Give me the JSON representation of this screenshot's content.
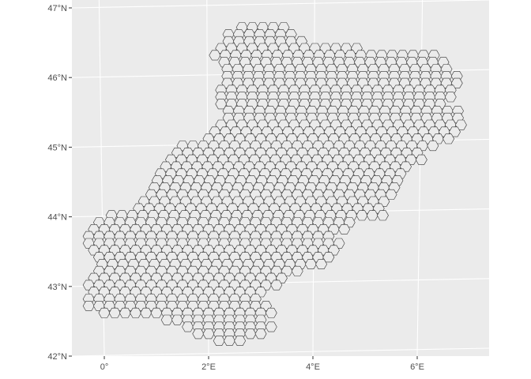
{
  "map": {
    "type": "hexagonal-grid-map",
    "panel_background": "#ebebeb",
    "grid_color": "#ffffff",
    "hex_outline_color": "#333333",
    "hex_fill": "#ebebeb",
    "lon_range": [
      -0.7,
      7.3
    ],
    "lat_range": [
      42,
      47
    ],
    "graticule": true
  },
  "axes": {
    "y_ticks": [
      {
        "value": 47,
        "label": "47°N"
      },
      {
        "value": 46,
        "label": "46°N"
      },
      {
        "value": 45,
        "label": "45°N"
      },
      {
        "value": 44,
        "label": "44°N"
      },
      {
        "value": 43,
        "label": "43°N"
      },
      {
        "value": 42,
        "label": "42°N"
      }
    ],
    "x_ticks": [
      {
        "value": 0,
        "label": "0°"
      },
      {
        "value": 2,
        "label": "2°E"
      },
      {
        "value": 4,
        "label": "4°E"
      },
      {
        "value": 6,
        "label": "6°E"
      }
    ]
  },
  "hex_rows": [
    [
      46.72,
      2.64,
      3.6
    ],
    [
      46.62,
      2.38,
      3.68
    ],
    [
      46.52,
      2.38,
      3.78
    ],
    [
      46.42,
      2.24,
      4.9
    ],
    [
      46.32,
      2.12,
      6.48
    ],
    [
      46.22,
      2.3,
      6.68
    ],
    [
      46.12,
      2.36,
      6.68
    ],
    [
      46.02,
      2.36,
      6.88
    ],
    [
      45.92,
      2.36,
      6.78
    ],
    [
      45.82,
      2.24,
      6.68
    ],
    [
      45.72,
      2.24,
      6.68
    ],
    [
      45.62,
      2.24,
      6.58
    ],
    [
      45.52,
      2.38,
      6.78
    ],
    [
      45.42,
      2.38,
      6.88
    ],
    [
      45.32,
      2.24,
      6.88
    ],
    [
      45.22,
      2.12,
      6.78
    ],
    [
      45.12,
      2.0,
      6.68
    ],
    [
      45.02,
      1.5,
      6.36
    ],
    [
      44.92,
      1.4,
      6.16
    ],
    [
      44.82,
      1.28,
      6.26
    ],
    [
      44.72,
      1.18,
      5.94
    ],
    [
      44.62,
      1.08,
      5.82
    ],
    [
      44.52,
      1.02,
      5.7
    ],
    [
      44.42,
      0.96,
      5.6
    ],
    [
      44.32,
      0.9,
      5.5
    ],
    [
      44.22,
      0.76,
      5.54
    ],
    [
      44.12,
      0.66,
      5.38
    ],
    [
      44.02,
      0.14,
      5.4
    ],
    [
      43.92,
      -0.1,
      4.7
    ],
    [
      43.82,
      -0.2,
      4.6
    ],
    [
      43.72,
      -0.3,
      4.44
    ],
    [
      43.62,
      -0.3,
      4.6
    ],
    [
      43.52,
      -0.2,
      4.44
    ],
    [
      43.42,
      -0.1,
      4.34
    ],
    [
      43.32,
      -0.04,
      4.2
    ],
    [
      43.22,
      -0.1,
      3.86
    ],
    [
      43.12,
      -0.2,
      3.4
    ],
    [
      43.02,
      -0.3,
      3.3
    ],
    [
      42.92,
      -0.2,
      3.14
    ],
    [
      42.82,
      -0.3,
      3.04
    ],
    [
      42.72,
      -0.3,
      3.14
    ],
    [
      42.62,
      0.0,
      3.2
    ],
    [
      42.52,
      1.2,
      3.14
    ],
    [
      42.42,
      1.6,
      3.24
    ],
    [
      42.32,
      1.8,
      3.14
    ],
    [
      42.22,
      2.2,
      2.7
    ]
  ]
}
